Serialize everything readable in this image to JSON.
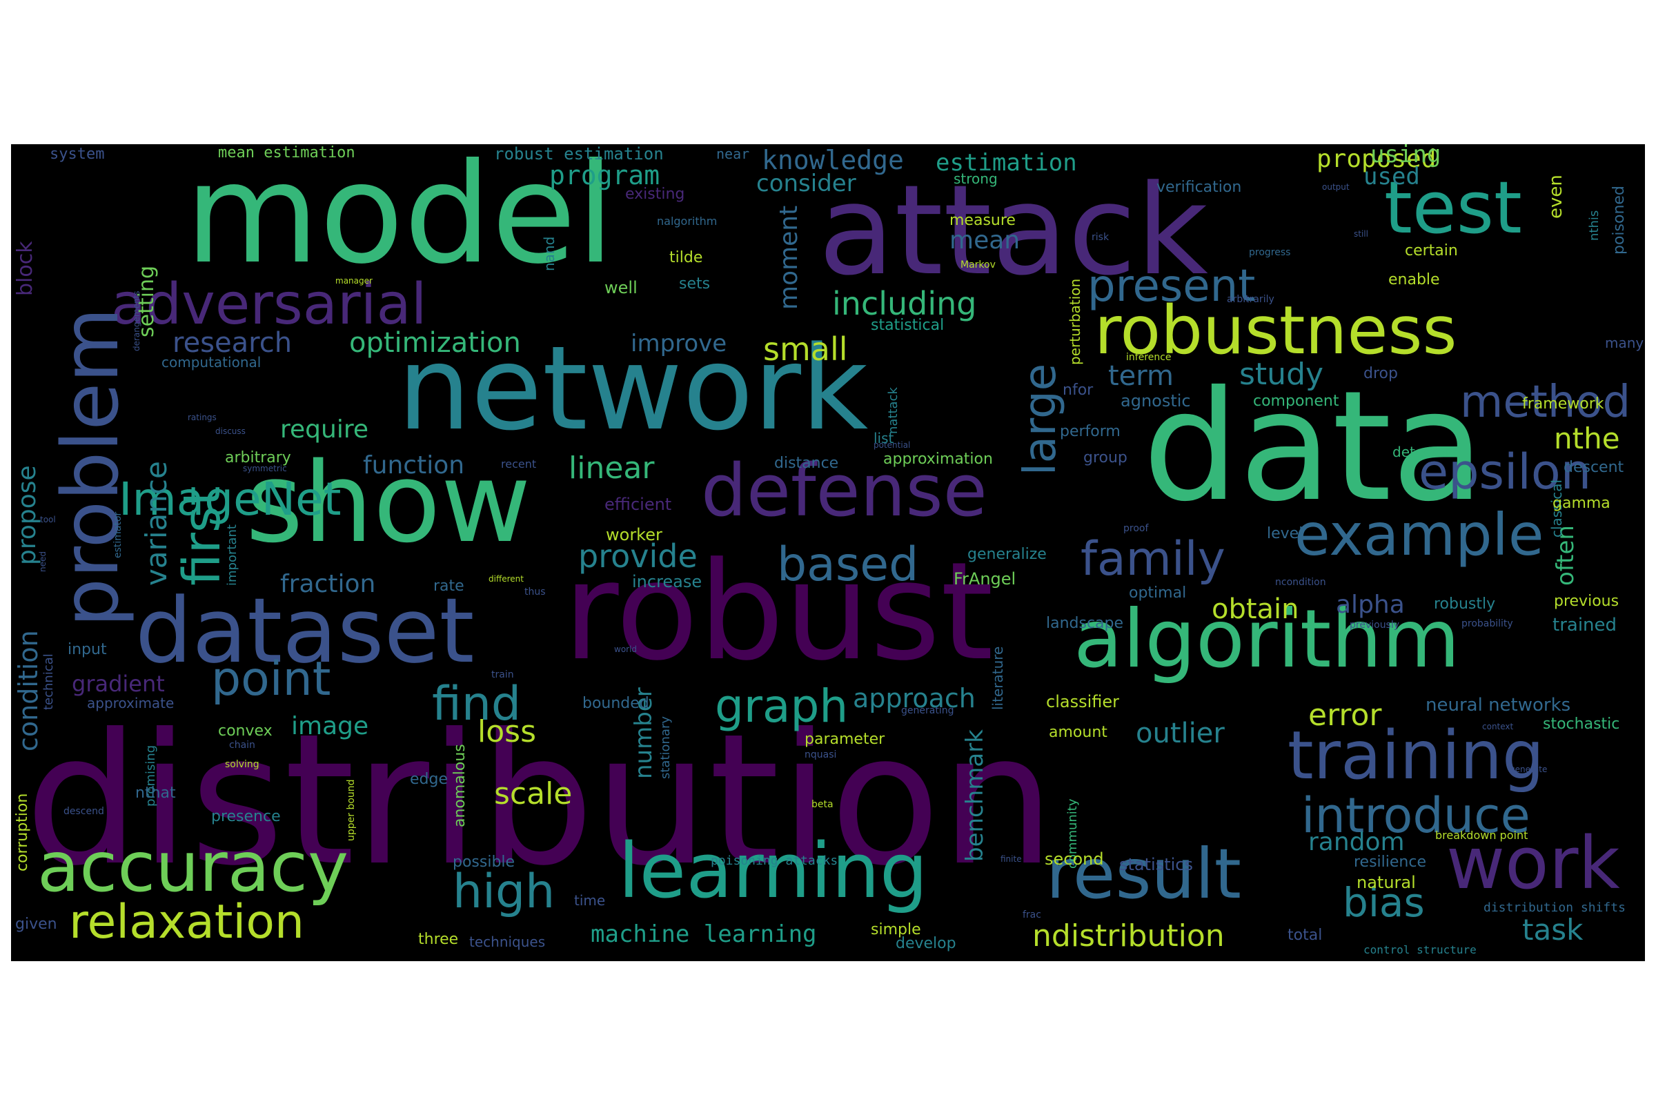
{
  "palette": {
    "background": "#000000",
    "purple": "#440154",
    "indigo": "#482878",
    "blue": "#3b528b",
    "steel": "#31688e",
    "teal": "#26828e",
    "sea": "#1f9e89",
    "green": "#35b779",
    "lime": "#6ece58",
    "yellow": "#b5de2b"
  },
  "words": {
    "distribution": "distribution",
    "model": "model",
    "attack": "attack",
    "data": "data",
    "network": "network",
    "robust": "robust",
    "show": "show",
    "dataset": "dataset",
    "algorithm": "algorithm",
    "problem": "problem",
    "robustness": "robustness",
    "test": "test",
    "defense": "defense",
    "learning": "learning",
    "accuracy": "accuracy",
    "result": "result",
    "training": "training",
    "example": "example",
    "work": "work",
    "adversarial": "adversarial",
    "introduce": "introduce",
    "epsilon": "epsilon",
    "present": "present",
    "method": "method",
    "imagenet": "ImageNet",
    "relaxation": "relaxation",
    "family": "family",
    "first": "first",
    "point": "point",
    "high": "high",
    "based": "based",
    "find": "find",
    "graph": "graph",
    "large": "large",
    "bias": "bias",
    "including": "including",
    "optimization": "optimization",
    "research": "research",
    "knowledge": "knowledge",
    "program": "program",
    "small": "small",
    "provide": "provide",
    "linear": "linear",
    "proposed": "proposed",
    "estimation": "estimation",
    "study": "study",
    "term": "term",
    "nthe": "nthe",
    "obtain": "obtain",
    "task": "task",
    "error": "error",
    "loss": "loss",
    "outlier": "outlier",
    "scale": "scale",
    "machine_learning": "machine learning",
    "ndistribution": "ndistribution",
    "image": "image",
    "approach": "approach",
    "fraction": "fraction",
    "random": "random",
    "variance": "variance",
    "condition": "condition",
    "propose": "propose",
    "require": "require",
    "function": "function",
    "improve": "improve",
    "consider": "consider",
    "mean": "mean",
    "moment": "moment",
    "benchmark": "benchmark",
    "number": "number",
    "setting": "setting",
    "often": "often",
    "alpha": "alpha",
    "used": "used",
    "using": "using",
    "gradient": "gradient",
    "block": "block",
    "mean_estimation": "mean estimation",
    "robust_estimation": "robust estimation",
    "near": "near",
    "system": "system",
    "existing": "existing",
    "strong": "strong",
    "verification": "verification",
    "output": "output",
    "poisoned": "poisoned",
    "even": "even",
    "nthis": "nthis",
    "still": "still",
    "certain": "certain",
    "risk": "risk",
    "nalgorithm": "nalgorithm",
    "measure": "measure",
    "tilde": "tilde",
    "sets": "sets",
    "well": "well",
    "nand": "nand",
    "markov": "Markov",
    "progress": "progress",
    "enable": "enable",
    "arbitrarily": "arbitrarily",
    "manager": "manager",
    "statistical": "statistical",
    "perturbation": "perturbation",
    "many": "many",
    "nattack": "nattack",
    "inference": "inference",
    "drop": "drop",
    "nfor": "nfor",
    "agnostic": "agnostic",
    "component": "component",
    "framework": "framework",
    "perform": "perform",
    "ratings": "ratings",
    "discuss": "discuss",
    "potential": "potential",
    "list": "list",
    "group": "group",
    "detectors": "detectors",
    "arbitrary": "arbitrary",
    "recent": "recent",
    "distance": "distance",
    "approximation": "approximation",
    "descent": "descent",
    "symmetric": "symmetric",
    "classical": "classical",
    "computational": "computational",
    "tool": "tool",
    "efficient": "efficient",
    "proof": "proof",
    "gamma": "gamma",
    "level": "level",
    "worker": "worker",
    "generalize": "generalize",
    "frangel": "FrAngel",
    "rate": "rate",
    "different": "different",
    "increase": "increase",
    "thus": "thus",
    "ncondition": "ncondition",
    "optimal": "optimal",
    "robustly": "robustly",
    "previous": "previous",
    "landscape": "landscape",
    "previously": "previously",
    "probability": "probability",
    "trained": "trained",
    "input": "input",
    "literature": "literature",
    "world": "world",
    "approximate": "approximate",
    "train": "train",
    "technical": "technical",
    "bounded": "bounded",
    "stationary": "stationary",
    "classifier": "classifier",
    "neural_networks": "neural networks",
    "generating": "generating",
    "stochastic": "stochastic",
    "context": "context",
    "convex": "convex",
    "chain": "chain",
    "amount": "amount",
    "parameter": "parameter",
    "nquasi": "nquasi",
    "solving": "solving",
    "generate": "generate",
    "anomalous": "anomalous",
    "promising": "promising",
    "nthat": "nthat",
    "descend": "descend",
    "community": "community",
    "edge": "edge",
    "upper_bound": "upper bound",
    "presence": "presence",
    "beta": "beta",
    "breakdown_point": "breakdown point",
    "corruption": "corruption",
    "need": "need",
    "finite": "finite",
    "possible": "possible",
    "poisoning_attacks": "poisoning attacks",
    "resilience": "resilience",
    "statistics": "statistics",
    "second": "second",
    "natural": "natural",
    "time": "time",
    "frac": "frac",
    "distribution_shifts": "distribution shifts",
    "given": "given",
    "three": "three",
    "techniques": "techniques",
    "develop": "develop",
    "simple": "simple",
    "total": "total",
    "control_structure": "control structure",
    "important": "important",
    "estimator": "estimator",
    "derangements": "derangements"
  }
}
